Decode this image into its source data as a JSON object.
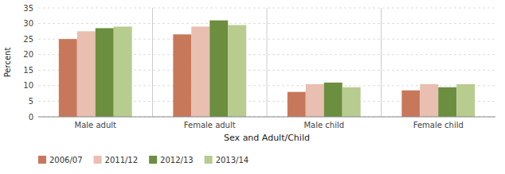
{
  "chart_data": {
    "type": "bar",
    "categories": [
      "Male adult",
      "Female adult",
      "Male child",
      "Female child"
    ],
    "series": [
      {
        "name": "2006/07",
        "color": "#c8785a",
        "values": [
          25,
          26.5,
          8,
          8.5
        ]
      },
      {
        "name": "2011/12",
        "color": "#e8bfb0",
        "values": [
          27.5,
          29,
          10.5,
          10.5
        ]
      },
      {
        "name": "2012/13",
        "color": "#6b8f3e",
        "values": [
          28.5,
          31,
          11,
          9.5
        ]
      },
      {
        "name": "2013/14",
        "color": "#b8cc90",
        "values": [
          29,
          29.5,
          9.5,
          10.5
        ]
      }
    ],
    "xlabel": "Sex and Adult/Child",
    "ylabel": "Percent",
    "ylim": [
      0,
      35
    ],
    "yticks": [
      0,
      5,
      10,
      15,
      20,
      25,
      30,
      35
    ],
    "grid": true,
    "legend": "bottom"
  }
}
